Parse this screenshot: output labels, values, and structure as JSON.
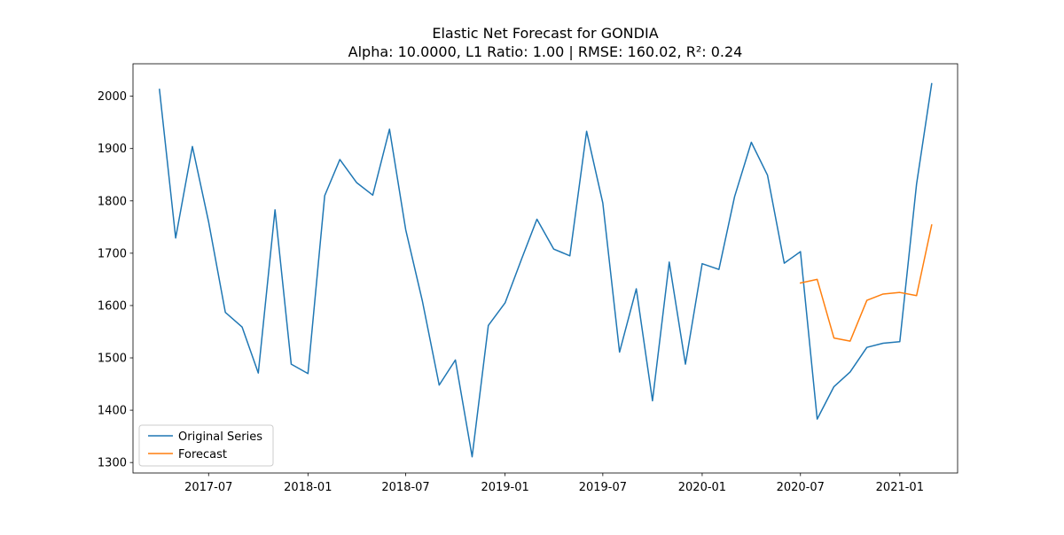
{
  "chart_data": {
    "type": "line",
    "title": "Elastic Net Forecast for GONDIA",
    "subtitle": "Alpha: 10.0000, L1 Ratio: 1.00 | RMSE: 160.02, R²: 0.24",
    "xlabel": "",
    "ylabel": "",
    "x_tick_labels": [
      "2017-07",
      "2018-01",
      "2018-07",
      "2019-01",
      "2019-07",
      "2020-01",
      "2020-07",
      "2021-01"
    ],
    "x_tick_dates": [
      "2017-07-01",
      "2018-01-01",
      "2018-07-01",
      "2019-01-01",
      "2019-07-01",
      "2020-01-01",
      "2020-07-01",
      "2021-01-01"
    ],
    "y_ticks": [
      1300,
      1400,
      1500,
      1600,
      1700,
      1800,
      1900,
      2000
    ],
    "xlim": [
      "2017-02-11",
      "2021-04-18"
    ],
    "ylim": [
      1280,
      2062
    ],
    "grid": false,
    "legend_position": "lower-left",
    "series": [
      {
        "name": "Original Series",
        "color": "#1f77b4",
        "points": [
          [
            "2017-04-01",
            2013
          ],
          [
            "2017-05-01",
            1729
          ],
          [
            "2017-06-01",
            1904
          ],
          [
            "2017-07-01",
            1760
          ],
          [
            "2017-08-01",
            1587
          ],
          [
            "2017-09-01",
            1559
          ],
          [
            "2017-10-01",
            1471
          ],
          [
            "2017-11-01",
            1783
          ],
          [
            "2017-12-01",
            1488
          ],
          [
            "2018-01-01",
            1470
          ],
          [
            "2018-02-01",
            1810
          ],
          [
            "2018-03-01",
            1879
          ],
          [
            "2018-04-01",
            1835
          ],
          [
            "2018-05-01",
            1811
          ],
          [
            "2018-06-01",
            1937
          ],
          [
            "2018-07-01",
            1745
          ],
          [
            "2018-08-01",
            1608
          ],
          [
            "2018-09-01",
            1448
          ],
          [
            "2018-10-01",
            1496
          ],
          [
            "2018-11-01",
            1311
          ],
          [
            "2018-12-01",
            1562
          ],
          [
            "2019-01-01",
            1605
          ],
          [
            "2019-02-01",
            1690
          ],
          [
            "2019-03-01",
            1765
          ],
          [
            "2019-04-01",
            1708
          ],
          [
            "2019-05-01",
            1695
          ],
          [
            "2019-06-01",
            1933
          ],
          [
            "2019-07-01",
            1796
          ],
          [
            "2019-08-01",
            1511
          ],
          [
            "2019-09-01",
            1632
          ],
          [
            "2019-10-01",
            1418
          ],
          [
            "2019-11-01",
            1683
          ],
          [
            "2019-12-01",
            1488
          ],
          [
            "2020-01-01",
            1680
          ],
          [
            "2020-02-01",
            1669
          ],
          [
            "2020-03-01",
            1808
          ],
          [
            "2020-04-01",
            1912
          ],
          [
            "2020-05-01",
            1849
          ],
          [
            "2020-06-01",
            1681
          ],
          [
            "2020-07-01",
            1703
          ],
          [
            "2020-08-01",
            1383
          ],
          [
            "2020-09-01",
            1445
          ],
          [
            "2020-10-01",
            1473
          ],
          [
            "2020-11-01",
            1520
          ],
          [
            "2020-12-01",
            1528
          ],
          [
            "2021-01-01",
            1531
          ],
          [
            "2021-02-01",
            1832
          ],
          [
            "2021-03-01",
            2024
          ]
        ]
      },
      {
        "name": "Forecast",
        "color": "#ff7f0e",
        "points": [
          [
            "2020-07-01",
            1643
          ],
          [
            "2020-08-01",
            1650
          ],
          [
            "2020-09-01",
            1538
          ],
          [
            "2020-10-01",
            1532
          ],
          [
            "2020-11-01",
            1610
          ],
          [
            "2020-12-01",
            1622
          ],
          [
            "2021-01-01",
            1625
          ],
          [
            "2021-02-01",
            1619
          ],
          [
            "2021-03-01",
            1754
          ]
        ]
      }
    ]
  }
}
